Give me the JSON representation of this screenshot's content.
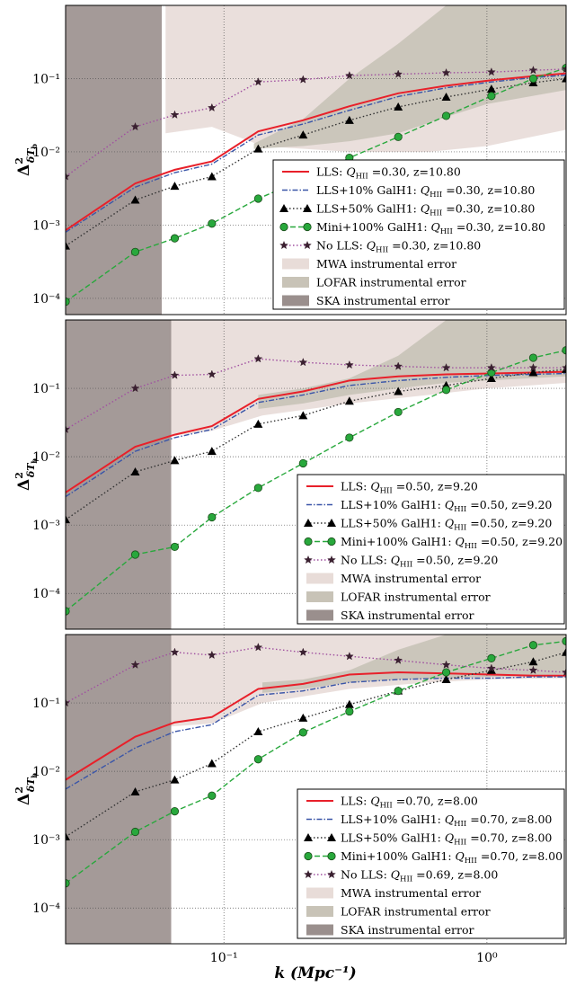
{
  "figure": {
    "xlabel": "k (Mpc⁻¹)",
    "ylabel_main": "Δ",
    "ylabel_sup": "2",
    "ylabel_sub": "δT",
    "ylabel_subsub": "b"
  },
  "chart_data": [
    {
      "type": "line",
      "xscale": "log",
      "yscale": "log",
      "xlim": [
        0.025,
        2.0
      ],
      "ylim": [
        6e-05,
        1.0
      ],
      "x_ticks": [
        {
          "value": 0.1,
          "label": "10⁻¹"
        },
        {
          "value": 1.0,
          "label": "10⁰"
        }
      ],
      "y_ticks": [
        {
          "value": 0.0001,
          "label": "10⁻⁴"
        },
        {
          "value": 0.001,
          "label": "10⁻³"
        },
        {
          "value": 0.01,
          "label": "10⁻²"
        },
        {
          "value": 0.1,
          "label": "10⁻¹"
        }
      ],
      "grid": true,
      "legend_position": "lower-right",
      "error_bands": [
        {
          "name": "MWA instrumental error",
          "color": "#e8dcd8",
          "x": [
            0.06,
            0.09,
            0.14,
            0.3,
            0.6,
            1.0,
            2.0
          ],
          "upper": [
            1.0,
            1.0,
            1.0,
            1.0,
            1.0,
            1.0,
            1.0
          ],
          "lower": [
            0.018,
            0.022,
            0.012,
            0.01,
            0.01,
            0.012,
            0.02
          ]
        },
        {
          "name": "LOFAR instrumental error",
          "color": "#c8c3b7",
          "x": [
            0.13,
            0.2,
            0.3,
            0.46,
            0.7,
            1.0,
            2.0
          ],
          "upper": [
            0.013,
            0.028,
            0.1,
            0.3,
            1.0,
            1.0,
            1.0
          ],
          "lower": [
            0.011,
            0.012,
            0.014,
            0.018,
            0.03,
            0.045,
            0.07
          ]
        },
        {
          "name": "SKA instrumental error",
          "color": "#9a8f8d",
          "x": [
            0.025,
            0.058
          ],
          "upper": [
            1.0,
            1.0
          ],
          "lower": [
            6e-05,
            6e-05
          ]
        }
      ],
      "x": [
        0.025,
        0.046,
        0.065,
        0.09,
        0.135,
        0.2,
        0.3,
        0.46,
        0.7,
        1.04,
        1.5,
        2.0
      ],
      "series": [
        {
          "name": "LLS: Q_HII =0.30, z=10.80",
          "label_prefix": "LLS: ",
          "label_suffix": " =0.30, z=10.80",
          "color": "#e8202a",
          "style": "solid",
          "marker": "none",
          "values": [
            0.00085,
            0.0037,
            0.0057,
            0.0074,
            0.019,
            0.027,
            0.042,
            0.063,
            0.08,
            0.095,
            0.108,
            0.118
          ]
        },
        {
          "name": "LLS+10% GalH1: Q_HII =0.30, z=10.80",
          "label_prefix": "LLS+10% GalH1: ",
          "label_suffix": " =0.30, z=10.80",
          "color": "#3a55a8",
          "style": "dashdot",
          "marker": "none",
          "values": [
            0.0008,
            0.0033,
            0.0052,
            0.0068,
            0.017,
            0.024,
            0.037,
            0.057,
            0.075,
            0.09,
            0.103,
            0.112
          ]
        },
        {
          "name": "LLS+50% GalH1: Q_HII =0.30, z=10.80",
          "label_prefix": "LLS+50% GalH1: ",
          "label_suffix": " =0.30, z=10.80",
          "color": "#333333",
          "style": "dotted",
          "marker": "triangle",
          "values": [
            0.00052,
            0.0022,
            0.0034,
            0.0046,
            0.011,
            0.017,
            0.027,
            0.041,
            0.056,
            0.072,
            0.088,
            0.1
          ]
        },
        {
          "name": "Mini+100% GalH1: Q_HII =0.30, z=10.80",
          "label_prefix": "Mini+100% GalH1: ",
          "label_suffix": " =0.30, z=10.80",
          "color": "#28a83c",
          "style": "dashed",
          "marker": "circle",
          "values": [
            9e-05,
            0.00043,
            0.00066,
            0.00105,
            0.0023,
            0.0042,
            0.0083,
            0.016,
            0.031,
            0.058,
            0.1,
            0.14
          ]
        },
        {
          "name": "No LLS: Q_HII =0.30, z=10.80",
          "label_prefix": "No LLS: ",
          "label_suffix": " =0.30, z=10.80",
          "color": "#a050a0",
          "style": "dotted",
          "marker": "star",
          "values": [
            0.0046,
            0.022,
            0.032,
            0.04,
            0.09,
            0.097,
            0.11,
            0.115,
            0.12,
            0.123,
            0.13,
            0.135
          ]
        }
      ]
    },
    {
      "type": "line",
      "xscale": "log",
      "yscale": "log",
      "xlim": [
        0.025,
        2.0
      ],
      "ylim": [
        3e-05,
        1.0
      ],
      "x_ticks": [
        {
          "value": 0.1,
          "label": "10⁻¹"
        },
        {
          "value": 1.0,
          "label": "10⁰"
        }
      ],
      "y_ticks": [
        {
          "value": 0.0001,
          "label": "10⁻⁴"
        },
        {
          "value": 0.001,
          "label": "10⁻³"
        },
        {
          "value": 0.01,
          "label": "10⁻²"
        },
        {
          "value": 0.1,
          "label": "10⁻¹"
        }
      ],
      "grid": true,
      "legend_position": "lower-right",
      "error_bands": [
        {
          "name": "MWA instrumental error",
          "color": "#e8dcd8",
          "x": [
            0.062,
            0.09,
            0.14,
            0.3,
            0.6,
            1.0,
            2.0
          ],
          "upper": [
            1.0,
            1.0,
            1.0,
            1.0,
            1.0,
            1.0,
            1.0
          ],
          "lower": [
            0.02,
            0.024,
            0.04,
            0.06,
            0.08,
            0.1,
            0.12
          ]
        },
        {
          "name": "LOFAR instrumental error",
          "color": "#c8c3b7",
          "x": [
            0.135,
            0.2,
            0.3,
            0.46,
            0.7,
            1.0,
            2.0
          ],
          "upper": [
            0.08,
            0.1,
            0.14,
            0.3,
            1.0,
            1.0,
            1.0
          ],
          "lower": [
            0.05,
            0.06,
            0.08,
            0.1,
            0.12,
            0.13,
            0.15
          ]
        },
        {
          "name": "SKA instrumental error",
          "color": "#9a8f8d",
          "x": [
            0.025,
            0.063
          ],
          "upper": [
            1.0,
            1.0
          ],
          "lower": [
            3e-05,
            3e-05
          ]
        }
      ],
      "x": [
        0.025,
        0.046,
        0.065,
        0.09,
        0.135,
        0.2,
        0.3,
        0.46,
        0.7,
        1.04,
        1.5,
        2.0
      ],
      "series": [
        {
          "name": "LLS: Q_HII =0.50, z=9.20",
          "label_prefix": "LLS: ",
          "label_suffix": " =0.50, z=9.20",
          "color": "#e8202a",
          "style": "solid",
          "marker": "none",
          "values": [
            0.003,
            0.014,
            0.021,
            0.028,
            0.07,
            0.09,
            0.13,
            0.15,
            0.16,
            0.165,
            0.17,
            0.175
          ]
        },
        {
          "name": "LLS+10% GalH1: Q_HII =0.50, z=9.20",
          "label_prefix": "LLS+10% GalH1: ",
          "label_suffix": " =0.50, z=9.20",
          "color": "#3a55a8",
          "style": "dashdot",
          "marker": "none",
          "values": [
            0.0026,
            0.012,
            0.019,
            0.025,
            0.062,
            0.08,
            0.11,
            0.13,
            0.145,
            0.155,
            0.16,
            0.165
          ]
        },
        {
          "name": "LLS+50% GalH1: Q_HII =0.50, z=9.20",
          "label_prefix": "LLS+50% GalH1: ",
          "label_suffix": " =0.50, z=9.20",
          "color": "#333333",
          "style": "dotted",
          "marker": "triangle",
          "values": [
            0.0012,
            0.006,
            0.0088,
            0.012,
            0.03,
            0.04,
            0.065,
            0.09,
            0.11,
            0.14,
            0.17,
            0.19
          ]
        },
        {
          "name": "Mini+100% GalH1: Q_HII =0.50, z=9.20",
          "label_prefix": "Mini+100% GalH1: ",
          "label_suffix": " =0.50, z=9.20",
          "color": "#28a83c",
          "style": "dashed",
          "marker": "circle",
          "values": [
            5.5e-05,
            0.00037,
            0.00048,
            0.0013,
            0.0035,
            0.008,
            0.019,
            0.045,
            0.095,
            0.17,
            0.28,
            0.36
          ]
        },
        {
          "name": "No LLS: Q_HII =0.50, z=9.20",
          "label_prefix": "No LLS: ",
          "label_suffix": " =0.50, z=9.20",
          "color": "#a050a0",
          "style": "dotted",
          "marker": "star",
          "values": [
            0.025,
            0.1,
            0.155,
            0.16,
            0.27,
            0.24,
            0.22,
            0.21,
            0.2,
            0.2,
            0.2,
            0.2
          ]
        }
      ]
    },
    {
      "type": "line",
      "xscale": "log",
      "yscale": "log",
      "xlim": [
        0.025,
        2.0
      ],
      "ylim": [
        3e-05,
        1.0
      ],
      "x_ticks": [
        {
          "value": 0.1,
          "label": "10⁻¹"
        },
        {
          "value": 1.0,
          "label": "10⁰"
        }
      ],
      "y_ticks": [
        {
          "value": 0.0001,
          "label": "10⁻⁴"
        },
        {
          "value": 0.001,
          "label": "10⁻³"
        },
        {
          "value": 0.01,
          "label": "10⁻²"
        },
        {
          "value": 0.1,
          "label": "10⁻¹"
        }
      ],
      "grid": true,
      "legend_position": "lower-right",
      "error_bands": [
        {
          "name": "MWA instrumental error",
          "color": "#e8dcd8",
          "x": [
            0.062,
            0.09,
            0.14,
            0.3,
            0.6,
            1.0,
            2.0
          ],
          "upper": [
            1.0,
            1.0,
            1.0,
            1.0,
            1.0,
            1.0,
            1.0
          ],
          "lower": [
            0.045,
            0.05,
            0.1,
            0.16,
            0.2,
            0.22,
            0.23
          ]
        },
        {
          "name": "LOFAR instrumental error",
          "color": "#c8c3b7",
          "x": [
            0.14,
            0.2,
            0.3,
            0.46,
            0.7,
            1.0,
            2.0
          ],
          "upper": [
            0.2,
            0.22,
            0.3,
            0.6,
            1.0,
            1.0,
            1.0
          ],
          "lower": [
            0.14,
            0.16,
            0.2,
            0.22,
            0.23,
            0.24,
            0.26
          ]
        },
        {
          "name": "SKA instrumental error",
          "color": "#9a8f8d",
          "x": [
            0.025,
            0.063
          ],
          "upper": [
            1.0,
            1.0
          ],
          "lower": [
            3e-05,
            3e-05
          ]
        }
      ],
      "x": [
        0.025,
        0.046,
        0.065,
        0.09,
        0.135,
        0.2,
        0.3,
        0.46,
        0.7,
        1.04,
        1.5,
        2.0
      ],
      "series": [
        {
          "name": "LLS: Q_HII =0.70, z=8.00",
          "label_prefix": "LLS: ",
          "label_suffix": " =0.70, z=8.00",
          "color": "#e8202a",
          "style": "solid",
          "marker": "none",
          "values": [
            0.0075,
            0.032,
            0.052,
            0.062,
            0.16,
            0.19,
            0.26,
            0.28,
            0.27,
            0.26,
            0.25,
            0.25
          ]
        },
        {
          "name": "LLS+10% GalH1: Q_HII =0.70, z=8.00",
          "label_prefix": "LLS+10% GalH1: ",
          "label_suffix": " =0.70, z=8.00",
          "color": "#3a55a8",
          "style": "dashdot",
          "marker": "none",
          "values": [
            0.0055,
            0.022,
            0.038,
            0.048,
            0.13,
            0.15,
            0.2,
            0.22,
            0.23,
            0.23,
            0.24,
            0.24
          ]
        },
        {
          "name": "LLS+50% GalH1: Q_HII =0.70, z=8.00",
          "label_prefix": "LLS+50% GalH1: ",
          "label_suffix": " =0.70, z=8.00",
          "color": "#333333",
          "style": "dotted",
          "marker": "triangle",
          "values": [
            0.0011,
            0.005,
            0.0075,
            0.013,
            0.038,
            0.06,
            0.095,
            0.15,
            0.22,
            0.3,
            0.4,
            0.55
          ]
        },
        {
          "name": "Mini+100% GalH1: Q_HII =0.70, z=8.00",
          "label_prefix": "Mini+100% GalH1: ",
          "label_suffix": " =0.70, z=8.00",
          "color": "#28a83c",
          "style": "dashed",
          "marker": "circle",
          "values": [
            0.00023,
            0.0013,
            0.0026,
            0.0044,
            0.015,
            0.037,
            0.075,
            0.15,
            0.28,
            0.45,
            0.7,
            0.8
          ]
        },
        {
          "name": "No LLS: Q_HII =0.69, z=8.00",
          "label_prefix": "No LLS: ",
          "label_suffix": " =0.69, z=8.00",
          "color": "#a050a0",
          "style": "dotted",
          "marker": "star",
          "values": [
            0.1,
            0.36,
            0.55,
            0.5,
            0.65,
            0.55,
            0.48,
            0.42,
            0.36,
            0.32,
            0.3,
            0.28
          ]
        }
      ]
    }
  ]
}
